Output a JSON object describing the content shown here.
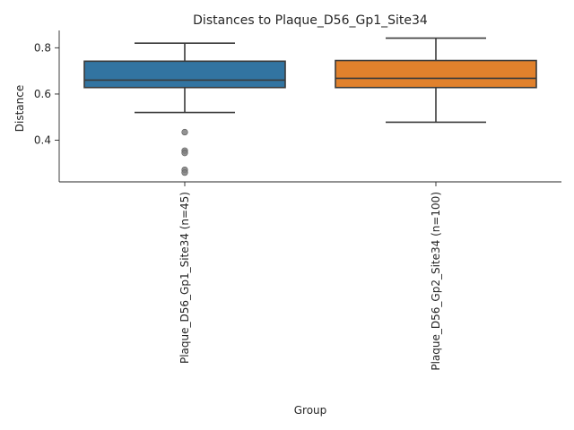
{
  "chart_data": {
    "type": "box",
    "title": "Distances to Plaque_D56_Gp1_Site34",
    "xlabel": "Group",
    "ylabel": "Distance",
    "ylim": [
      0.22,
      0.875
    ],
    "yticks": [
      0.4,
      0.6,
      0.8
    ],
    "ytick_labels": [
      "0.4",
      "0.6",
      "0.8"
    ],
    "grid": false,
    "categories": [
      "Plaque_D56_Gp1_Site34 (n=45)",
      "Plaque_D56_Gp2_Site34 (n=100)"
    ],
    "boxes": [
      {
        "category": "Plaque_D56_Gp1_Site34 (n=45)",
        "color": "#3274a1",
        "whisker_low": 0.52,
        "q1": 0.628,
        "median": 0.66,
        "q3": 0.742,
        "whisker_high": 0.82,
        "outliers": [
          0.435,
          0.355,
          0.345,
          0.272,
          0.26
        ]
      },
      {
        "category": "Plaque_D56_Gp2_Site34 (n=100)",
        "color": "#e1812c",
        "whisker_low": 0.478,
        "q1": 0.628,
        "median": 0.668,
        "q3": 0.745,
        "whisker_high": 0.842,
        "outliers": []
      }
    ],
    "outlier_color": "#7f7f7f",
    "line_color": "#3a3a3a"
  }
}
